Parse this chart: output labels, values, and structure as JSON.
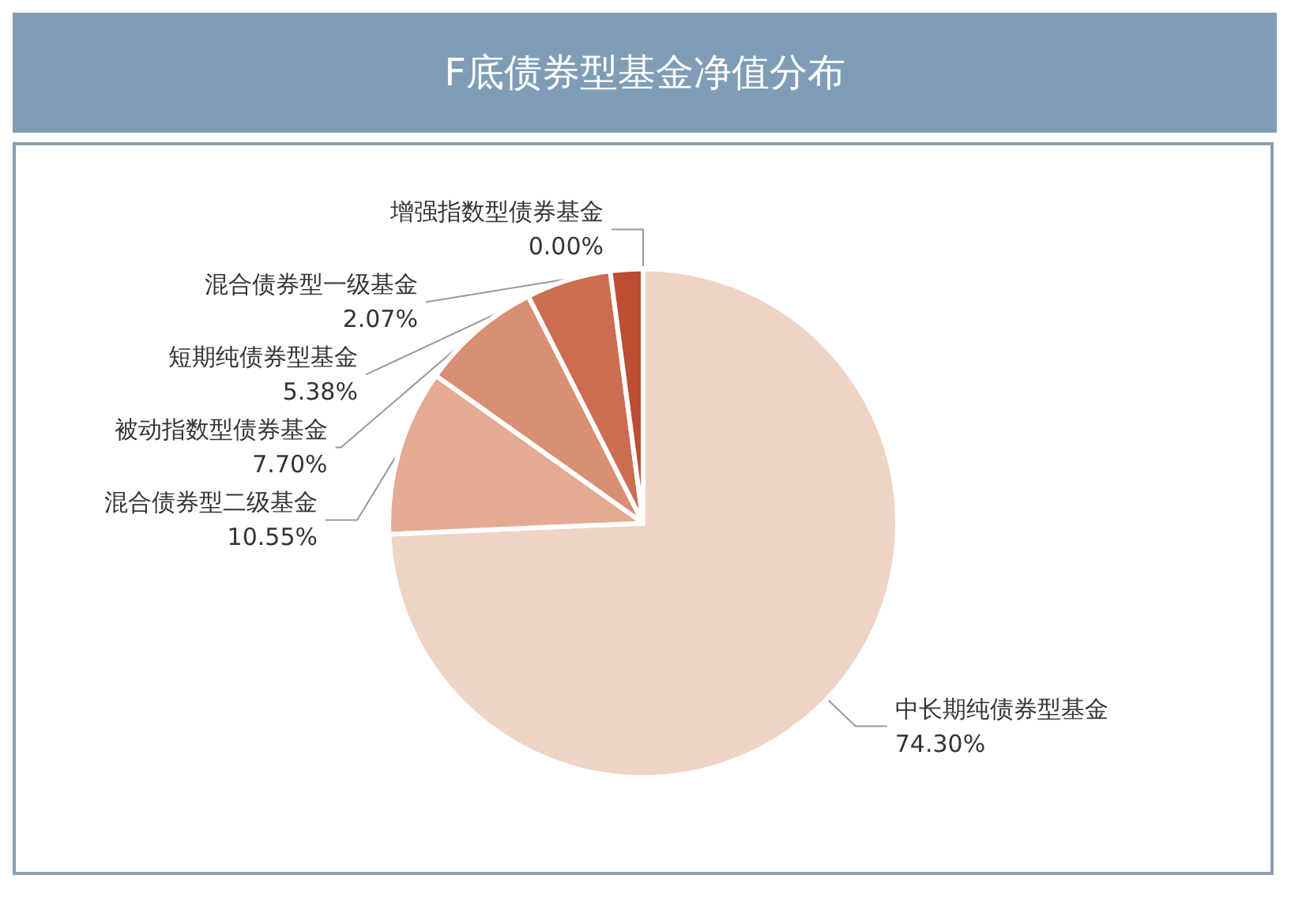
{
  "chart_data": {
    "type": "pie",
    "title": "F底债券型基金净值分布",
    "categories": [
      "中长期纯债券型基金",
      "混合债券型二级基金",
      "被动指数型债券基金",
      "短期纯债券型基金",
      "混合债券型一级基金",
      "增强指数型债券基金"
    ],
    "values": [
      74.3,
      10.55,
      7.7,
      5.38,
      2.07,
      0.0
    ],
    "value_labels": [
      "74.30%",
      "10.55%",
      "7.70%",
      "5.38%",
      "2.07%",
      "0.00%"
    ],
    "colors": [
      "#efd3c5",
      "#e4ab92",
      "#d98f72",
      "#cb6d50",
      "#bb4e33",
      "#9e3a26"
    ],
    "legend": false
  }
}
